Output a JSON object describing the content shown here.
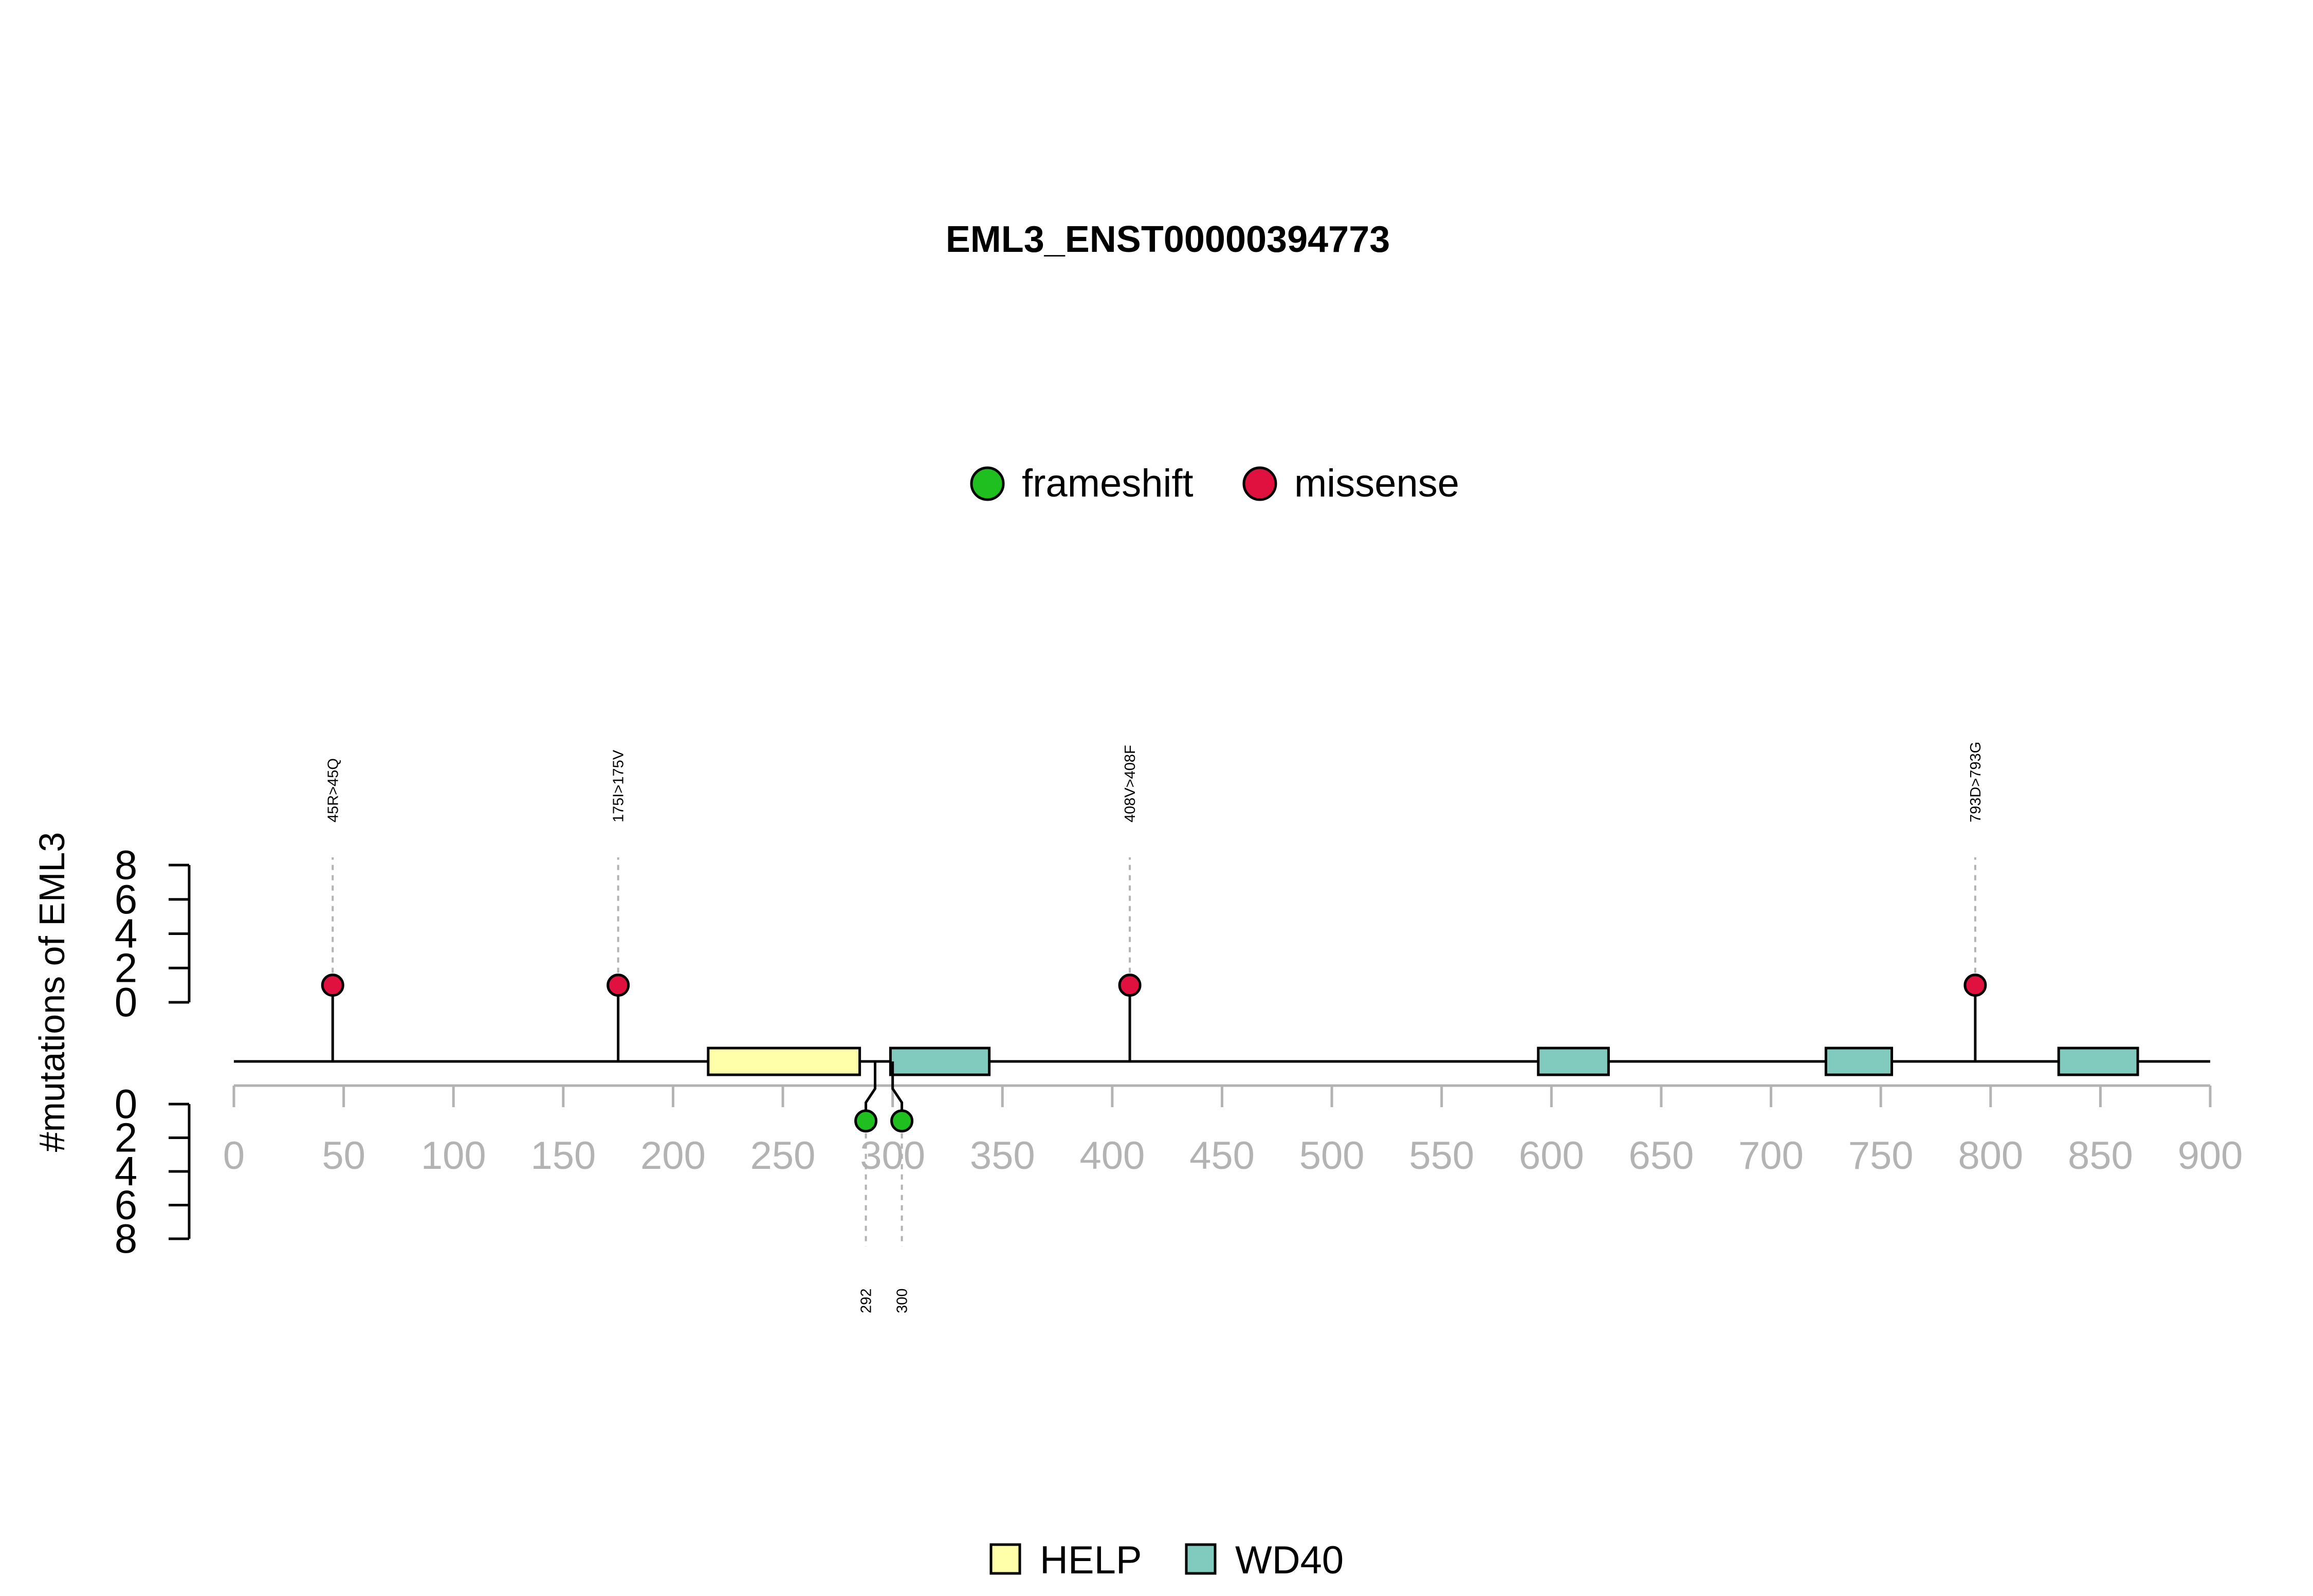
{
  "chart_data": {
    "type": "lollipop",
    "title": "EML3_ENST00000394773",
    "ylabel": "#mutations of EML3",
    "x_ticks": [
      0,
      50,
      100,
      150,
      200,
      250,
      300,
      350,
      400,
      450,
      500,
      550,
      600,
      650,
      700,
      750,
      800,
      850,
      900
    ],
    "x_range": [
      0,
      900
    ],
    "y_ticks_upper": [
      0,
      2,
      4,
      6,
      8
    ],
    "y_ticks_lower": [
      0,
      2,
      4,
      6,
      8
    ],
    "y_range": [
      0,
      8
    ],
    "mutation_legend": [
      {
        "label": "frameshift",
        "color": "#1fbf1f"
      },
      {
        "label": "missense",
        "color": "#e0103f"
      }
    ],
    "domain_legend": [
      {
        "label": "HELP",
        "color": "#ffffaa"
      },
      {
        "label": "WD40",
        "color": "#80cbbe"
      }
    ],
    "upper_mutations": [
      {
        "position": 45,
        "label": "45R>45Q",
        "count": 1,
        "type": "missense"
      },
      {
        "position": 175,
        "label": "175I>175V",
        "count": 1,
        "type": "missense"
      },
      {
        "position": 408,
        "label": "408V>408F",
        "count": 1,
        "type": "missense"
      },
      {
        "position": 793,
        "label": "793D>793G",
        "count": 1,
        "type": "missense"
      }
    ],
    "lower_mutations": [
      {
        "position": 292,
        "label": "292",
        "count": 1,
        "type": "frameshift"
      },
      {
        "position": 300,
        "label": "300",
        "count": 1,
        "type": "frameshift"
      }
    ],
    "domains": [
      {
        "name": "HELP",
        "start": 216,
        "end": 285
      },
      {
        "name": "WD40",
        "start": 299,
        "end": 344
      },
      {
        "name": "WD40",
        "start": 594,
        "end": 626
      },
      {
        "name": "WD40",
        "start": 725,
        "end": 755
      },
      {
        "name": "WD40",
        "start": 831,
        "end": 867
      }
    ]
  }
}
